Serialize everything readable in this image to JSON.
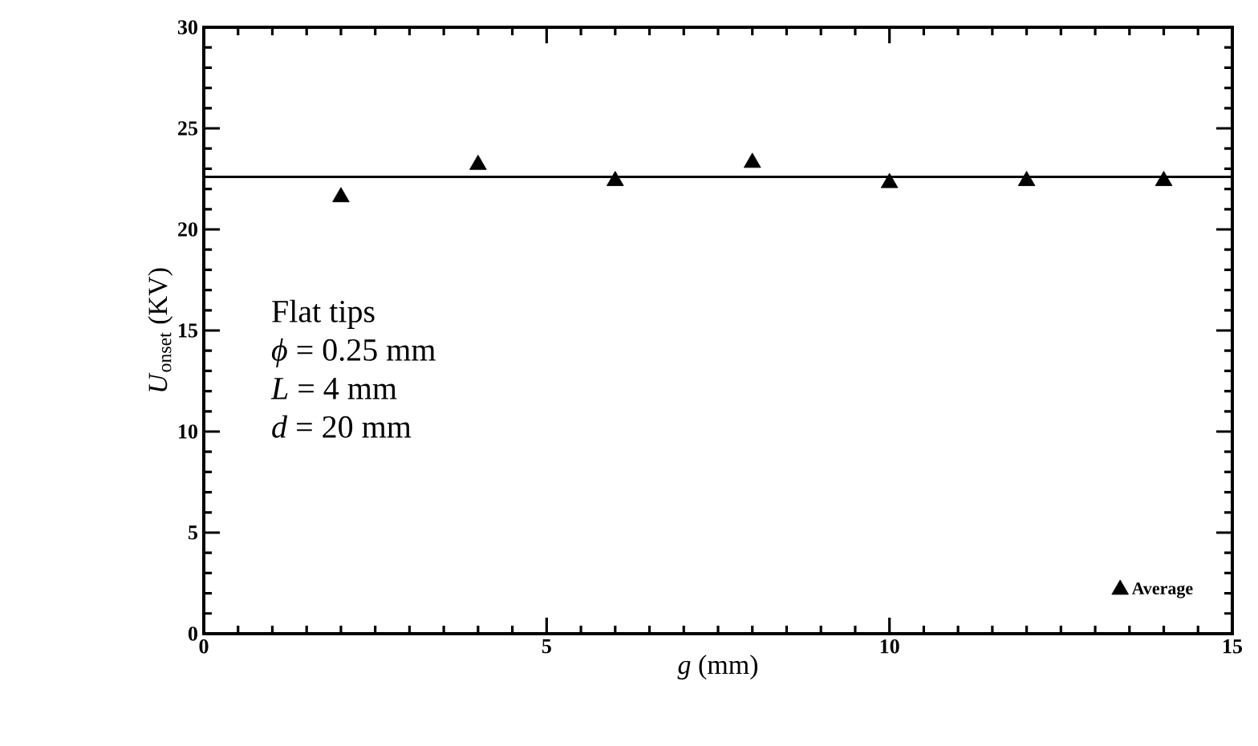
{
  "chart_data": {
    "type": "scatter",
    "xlabel": "*g* (mm)",
    "ylabel": "*U*$_{onset}$ (KV)",
    "xlim": [
      0,
      15
    ],
    "ylim": [
      0,
      30
    ],
    "xticks": [
      0,
      5,
      10,
      15
    ],
    "yticks": [
      0,
      5,
      10,
      15,
      20,
      25,
      30
    ],
    "marker": "triangle",
    "legend": "bottom right",
    "grid": false,
    "annotations": [
      "Flat tips",
      "*ϕ* = 0.25 mm",
      "*L* = 4 mm",
      "*d* = 20 mm"
    ],
    "series": [
      {
        "name": "Average",
        "color": "#000000",
        "x": [
          2,
          4,
          6,
          8,
          10,
          12,
          14
        ],
        "values": [
          21.6,
          23.2,
          22.4,
          23.3,
          22.3,
          22.4,
          22.4
        ]
      },
      {
        "type": "line",
        "color": "#000000",
        "x": [
          0,
          15
        ],
        "values": [
          22.6,
          22.6
        ],
        "line_style": "solid",
        "marker": "none"
      }
    ]
  }
}
